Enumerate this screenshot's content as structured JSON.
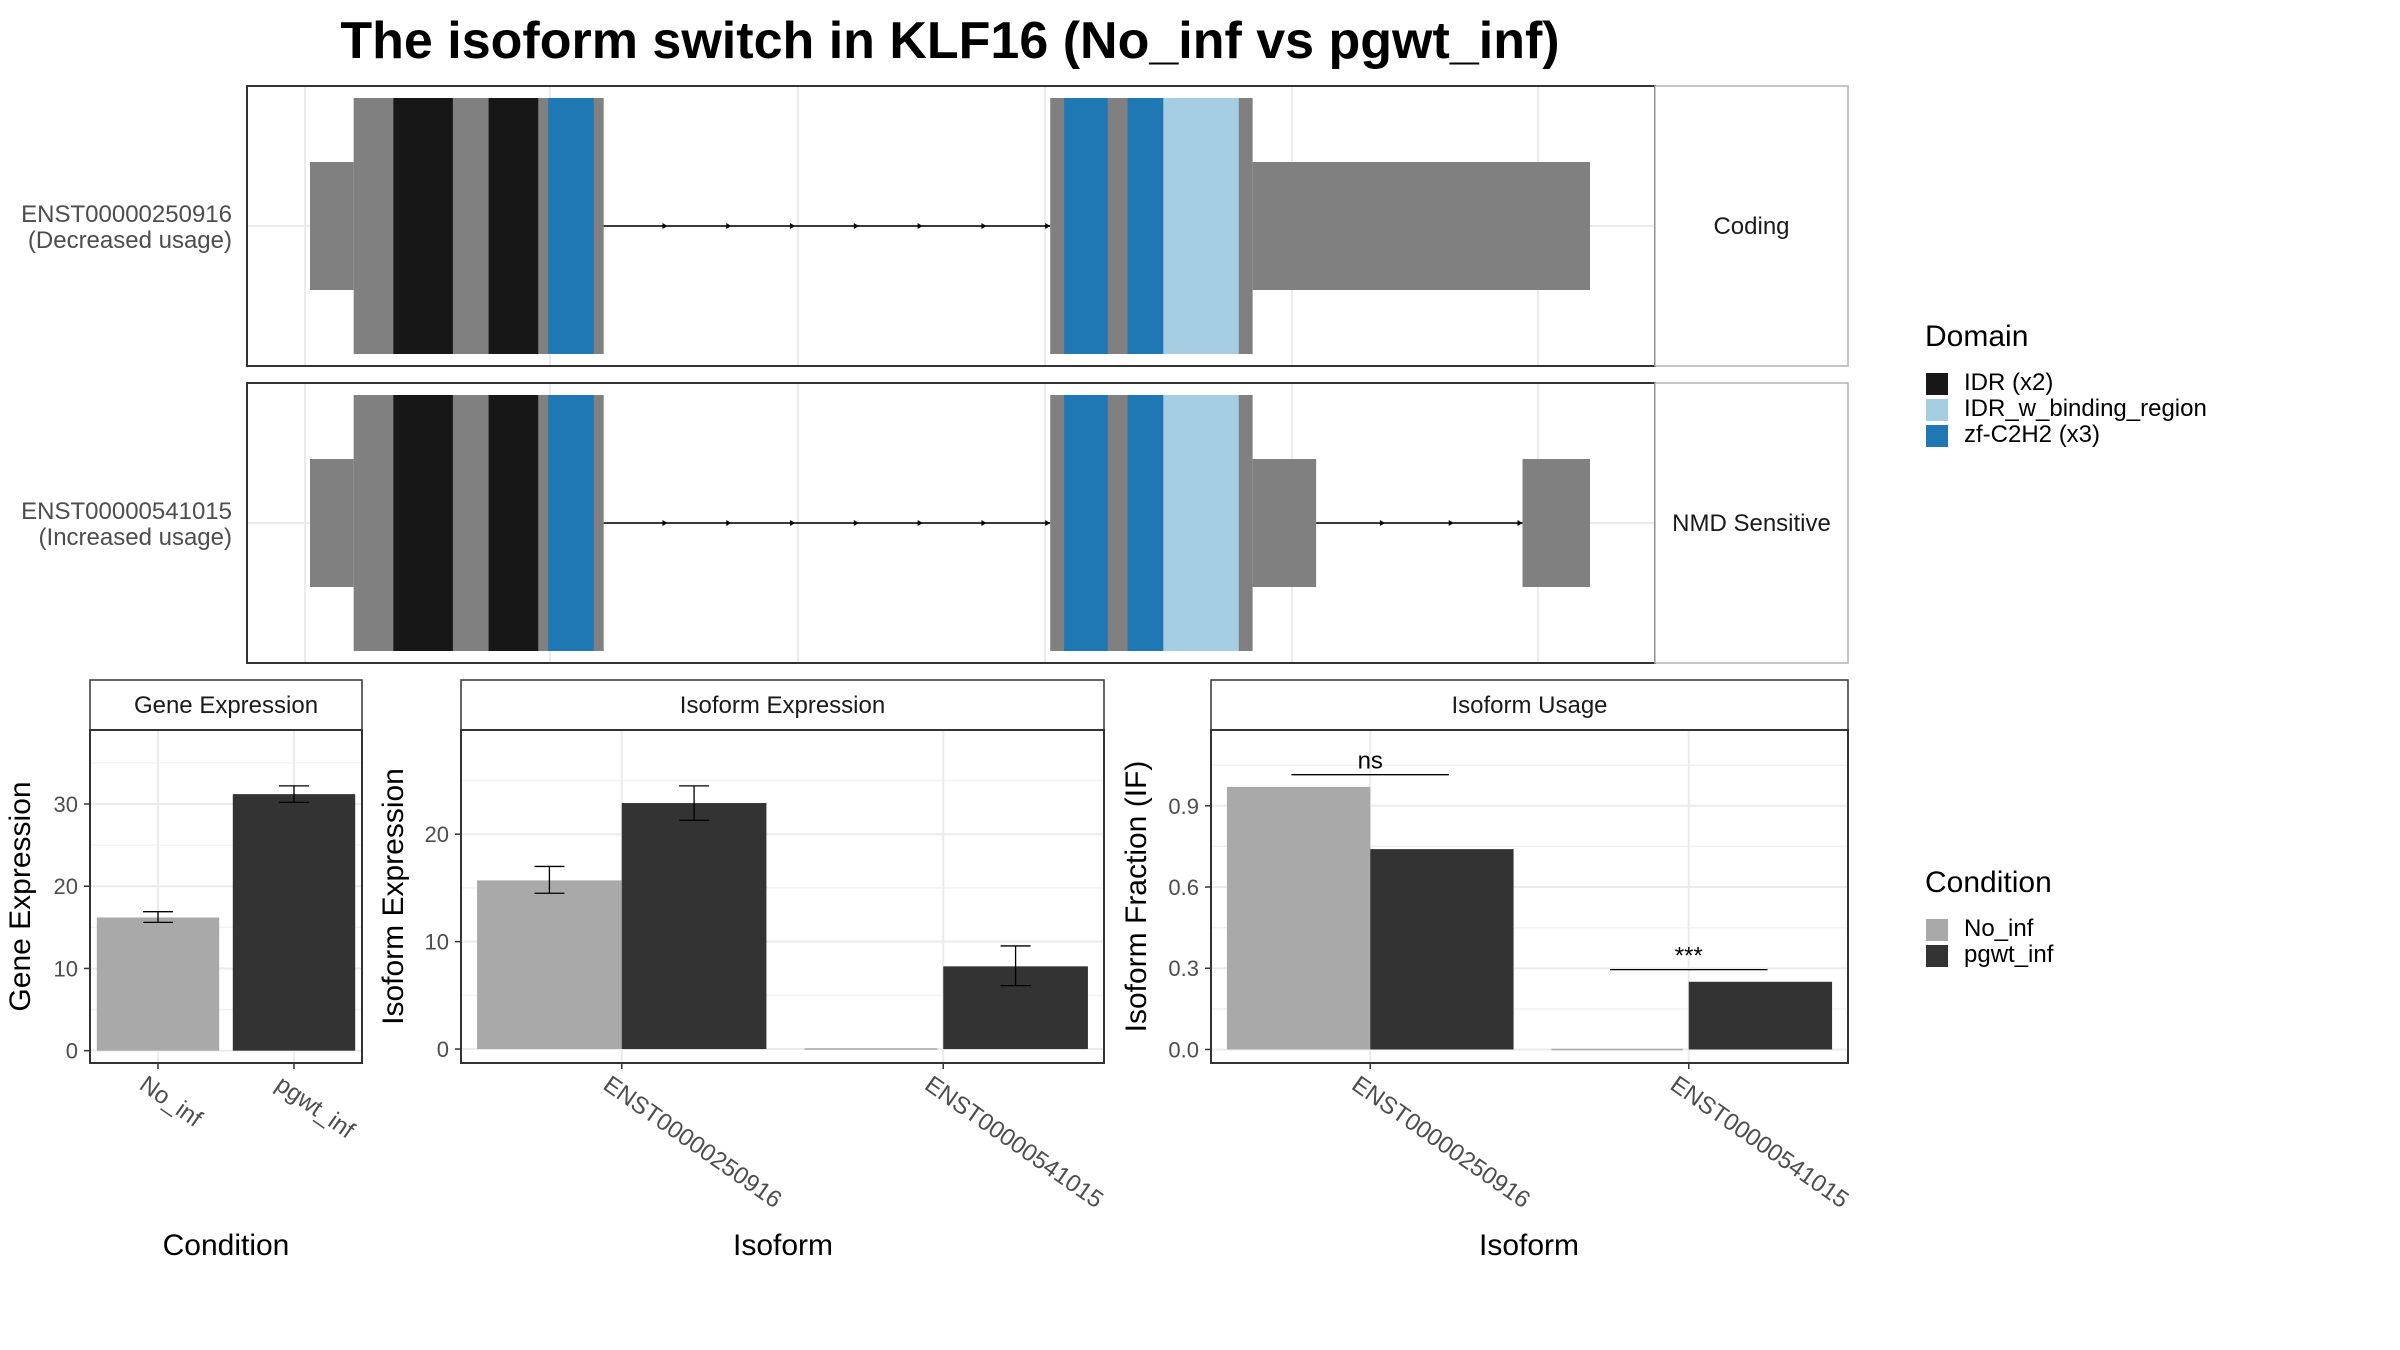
{
  "title": "The isoform switch in KLF16 (No_inf vs pgwt_inf)",
  "colors": {
    "exon": "#808080",
    "IDR (x2)": "#171717",
    "IDR_w_binding_region": "#a6cee3",
    "zf-C2H2 (x3)": "#1f78b4",
    "No_inf": "#a9a9a9",
    "pgwt_inf": "#333333"
  },
  "transcripts": [
    {
      "id": "ENST00000250916",
      "usage": "(Decreased usage)",
      "category": "Coding",
      "segments": [
        {
          "kind": "utr",
          "from": 0,
          "to": 22
        },
        {
          "kind": "cds",
          "from": 22,
          "to": 148
        },
        {
          "kind": "intron",
          "from": 148,
          "to": 373
        },
        {
          "kind": "cds",
          "from": 373,
          "to": 475
        },
        {
          "kind": "utr",
          "from": 475,
          "to": 645
        }
      ],
      "domains": [
        {
          "name": "IDR (x2)",
          "from": 42,
          "to": 72
        },
        {
          "name": "IDR (x2)",
          "from": 90,
          "to": 115
        },
        {
          "name": "zf-C2H2 (x3)",
          "from": 120,
          "to": 143
        },
        {
          "name": "zf-C2H2 (x3)",
          "from": 380,
          "to": 402
        },
        {
          "name": "zf-C2H2 (x3)",
          "from": 412,
          "to": 430
        },
        {
          "name": "IDR_w_binding_region",
          "from": 430,
          "to": 468
        }
      ]
    },
    {
      "id": "ENST00000541015",
      "usage": "(Increased usage)",
      "category": "NMD Sensitive",
      "segments": [
        {
          "kind": "utr",
          "from": 0,
          "to": 22
        },
        {
          "kind": "cds",
          "from": 22,
          "to": 148
        },
        {
          "kind": "intron",
          "from": 148,
          "to": 373
        },
        {
          "kind": "cds",
          "from": 373,
          "to": 475
        },
        {
          "kind": "utr",
          "from": 475,
          "to": 507
        },
        {
          "kind": "intron",
          "from": 507,
          "to": 611
        },
        {
          "kind": "utr",
          "from": 611,
          "to": 645
        }
      ],
      "domains": [
        {
          "name": "IDR (x2)",
          "from": 42,
          "to": 72
        },
        {
          "name": "IDR (x2)",
          "from": 90,
          "to": 115
        },
        {
          "name": "zf-C2H2 (x3)",
          "from": 120,
          "to": 143
        },
        {
          "name": "zf-C2H2 (x3)",
          "from": 380,
          "to": 402
        },
        {
          "name": "zf-C2H2 (x3)",
          "from": 412,
          "to": 430
        },
        {
          "name": "IDR_w_binding_region",
          "from": 430,
          "to": 468
        }
      ]
    }
  ],
  "domain_legend": {
    "title": "Domain",
    "items": [
      "IDR (x2)",
      "IDR_w_binding_region",
      "zf-C2H2 (x3)"
    ]
  },
  "condition_legend": {
    "title": "Condition",
    "items": [
      "No_inf",
      "pgwt_inf"
    ]
  },
  "chart_data": [
    {
      "type": "bar",
      "title": "Gene Expression",
      "xlabel": "Condition",
      "ylabel": "Gene Expression",
      "categories": [
        "No_inf",
        "pgwt_inf"
      ],
      "values": [
        16.2,
        31.2
      ],
      "errors": [
        [
          15.6,
          16.9
        ],
        [
          30.2,
          32.2
        ]
      ],
      "ylim": [
        -1.5,
        39
      ],
      "yticks": [
        0,
        10,
        20,
        30
      ],
      "grid": true
    },
    {
      "type": "bar",
      "title": "Isoform Expression",
      "xlabel": "Isoform",
      "ylabel": "Isoform Expression",
      "categories": [
        "ENST00000250916",
        "ENST00000541015"
      ],
      "series": [
        {
          "name": "No_inf",
          "values": [
            15.7,
            0.0
          ],
          "errors": [
            [
              14.5,
              17.0
            ],
            [
              0.0,
              0.0
            ]
          ]
        },
        {
          "name": "pgwt_inf",
          "values": [
            22.9,
            7.7
          ],
          "errors": [
            [
              21.3,
              24.5
            ],
            [
              5.9,
              9.6
            ]
          ]
        }
      ],
      "ylim": [
        -1.3,
        29.7
      ],
      "yticks": [
        0,
        10,
        20
      ],
      "grid": true
    },
    {
      "type": "bar",
      "title": "Isoform Usage",
      "xlabel": "Isoform",
      "ylabel": "Isoform Fraction (IF)",
      "categories": [
        "ENST00000250916",
        "ENST00000541015"
      ],
      "series": [
        {
          "name": "No_inf",
          "values": [
            0.97,
            0.0
          ]
        },
        {
          "name": "pgwt_inf",
          "values": [
            0.74,
            0.25
          ]
        }
      ],
      "significance": [
        "ns",
        "***"
      ],
      "ylim": [
        -0.05,
        1.18
      ],
      "yticks": [
        0.0,
        0.3,
        0.6,
        0.9
      ],
      "ytick_labels": [
        "0.0",
        "0.3",
        "0.6",
        "0.9"
      ],
      "grid": true
    }
  ]
}
